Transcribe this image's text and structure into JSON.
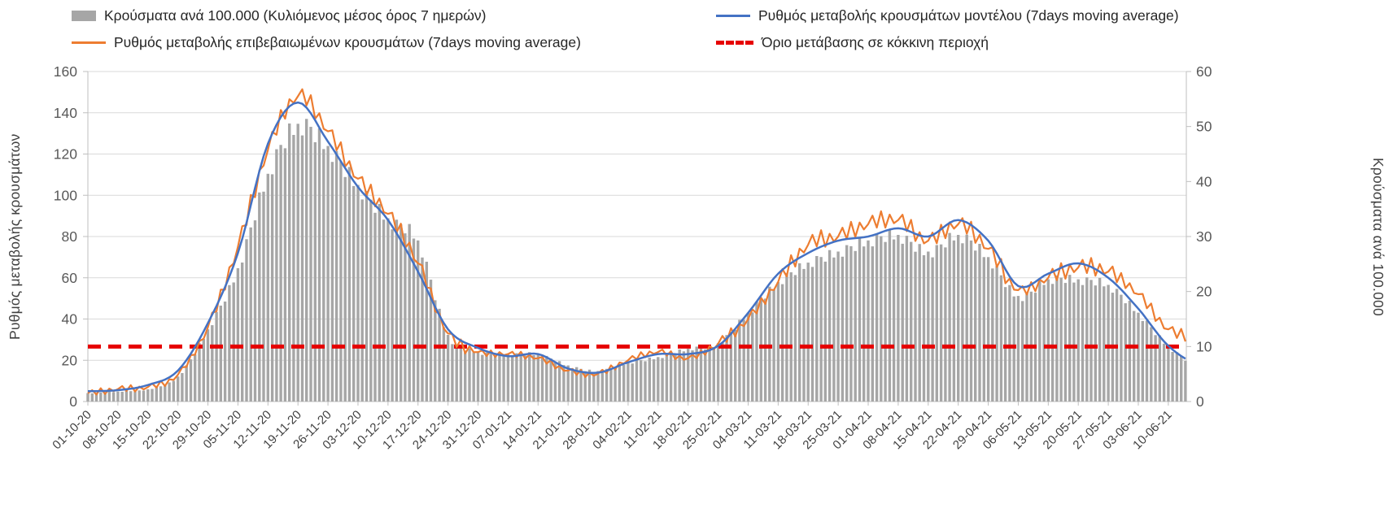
{
  "legend": {
    "items": [
      {
        "label": "Κρούσματα ανά 100.000 (Κυλιόμενος μέσος όρος 7 ημερών)",
        "swatch": "bar",
        "color": "#a6a6a6"
      },
      {
        "label": "Ρυθμός μεταβολής κρουσμάτων μοντέλου (7days moving average)",
        "swatch": "line",
        "color": "#4472c4"
      },
      {
        "label": "Ρυθμός μεταβολής επιβεβαιωμένων κρουσμάτων (7days moving average)",
        "swatch": "line",
        "color": "#ed7d31"
      },
      {
        "label": "Όριο μετάβασης σε κόκκινη περιοχή",
        "swatch": "dashed",
        "color": "#e60000"
      }
    ]
  },
  "chart_data": {
    "type": "combo",
    "title": "",
    "grid": "horizontal",
    "legend_position": "top",
    "categories": [
      "01-10-20",
      "08-10-20",
      "15-10-20",
      "22-10-20",
      "29-10-20",
      "05-11-20",
      "12-11-20",
      "19-11-20",
      "26-11-20",
      "03-12-20",
      "10-12-20",
      "17-12-20",
      "24-12-20",
      "31-12-20",
      "07-01-21",
      "14-01-21",
      "21-01-21",
      "28-01-21",
      "04-02-21",
      "11-02-21",
      "18-02-21",
      "25-02-21",
      "04-03-21",
      "11-03-21",
      "18-03-21",
      "25-03-21",
      "01-04-21",
      "08-04-21",
      "15-04-21",
      "22-04-21",
      "29-04-21",
      "06-05-21",
      "13-05-21",
      "20-05-21",
      "27-05-21",
      "03-06-21",
      "10-06-21"
    ],
    "axes": {
      "left": {
        "title": "Ρυθμός μεταβολής κρουσμάτων",
        "min": 0,
        "max": 160,
        "step": 20
      },
      "right": {
        "title": "Κρούσματα ανά 100.000",
        "min": 0,
        "max": 60,
        "step": 10
      }
    },
    "series": [
      {
        "name": "Κρούσματα ανά 100.000 (Κυλιόμενος μέσος όρος 7 ημερών)",
        "type": "bar",
        "axis": "right",
        "color": "#a6a6a6",
        "values": [
          1.5,
          1.8,
          2.2,
          4.5,
          13,
          24,
          41,
          50,
          46,
          39,
          33,
          29,
          12,
          9,
          8.5,
          8.5,
          6.5,
          5.5,
          7,
          8,
          9.5,
          10.5,
          16,
          21.5,
          25,
          27,
          29,
          30,
          27,
          30,
          26,
          19,
          22,
          22,
          21,
          16,
          10,
          6.5
        ]
      },
      {
        "name": "Ρυθμός μεταβολής κρουσμάτων μοντέλου (7days moving average)",
        "type": "line",
        "axis": "left",
        "color": "#4472c4",
        "values": [
          5,
          5.5,
          8,
          15,
          38,
          72,
          125,
          145,
          126,
          104,
          88,
          63,
          35,
          26,
          22,
          23,
          16,
          14,
          19,
          23,
          23,
          27,
          43,
          62,
          72,
          78,
          80,
          84,
          80,
          88,
          78,
          56,
          62,
          67,
          60,
          45,
          27,
          18
        ]
      },
      {
        "name": "Ρυθμός μεταβολής επιβεβαιωμένων κρουσμάτων (7days moving average)",
        "type": "line",
        "axis": "left",
        "color": "#ed7d31",
        "values": [
          4,
          6,
          7,
          13,
          36,
          75,
          122,
          148,
          131,
          108,
          91,
          67,
          33,
          24,
          23,
          21,
          15,
          13.5,
          20,
          24,
          21,
          28,
          40,
          58,
          76,
          80,
          86,
          88,
          78,
          86,
          74,
          54,
          60,
          65,
          63,
          52,
          35,
          31
        ]
      },
      {
        "name": "Όριο μετάβασης σε κόκκινη περιοχή",
        "type": "threshold",
        "axis": "right",
        "color": "#e60000",
        "value": 10
      }
    ],
    "render_hints": {
      "note": "values arrays hold 37 weekly anchors plus one unlabeled end point; bars are daily 7-day rolling averages",
      "orange_wiggle": [
        0,
        2.2,
        -1.8,
        2.8,
        -2.4,
        1.4,
        -1.2
      ],
      "bar_wiggle": [
        0.01,
        -0.035,
        0.03,
        0.012,
        -0.03,
        0.04,
        -0.02
      ]
    }
  }
}
